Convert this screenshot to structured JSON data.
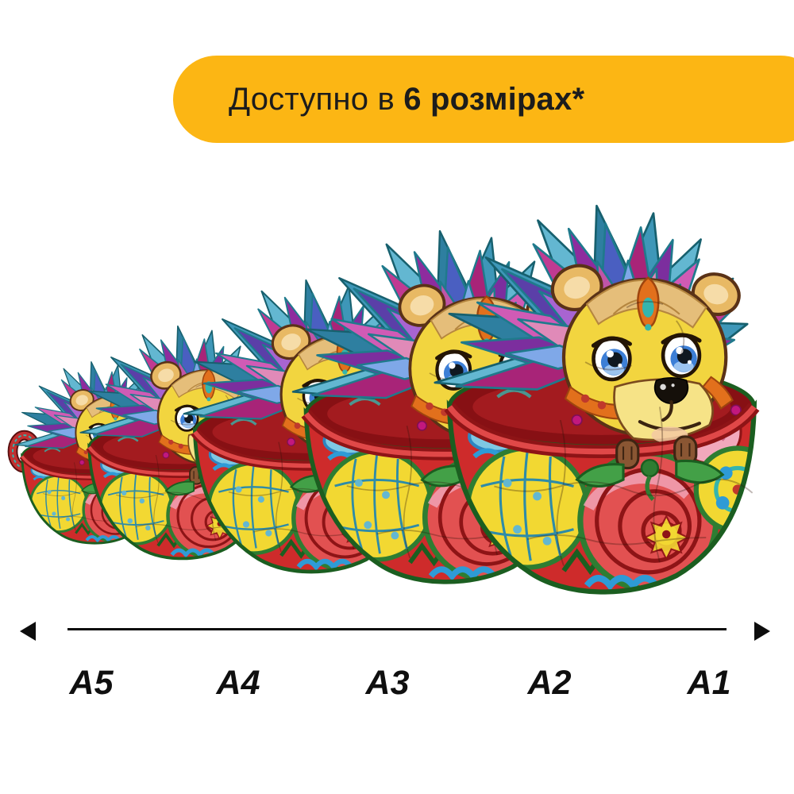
{
  "banner": {
    "text_regular": "Доступно в ",
    "text_bold": "6 розмірах*",
    "bg_color": "#FCB614",
    "text_color": "#1C1C1C"
  },
  "size_scale": {
    "labels": [
      "A5",
      "A4",
      "A3",
      "A2",
      "A1"
    ],
    "axis_color": "#0D0D0D"
  },
  "artwork": {
    "name": "hedgehog-in-teacup-puzzle",
    "cup_red": "#CE2B2B",
    "cup_interior": "#871014",
    "rim_green": "#1B5E20",
    "face_yellow": "#F2D53F",
    "quill_colors_back": [
      "#3E97B8",
      "#2E7FA0",
      "#63B7D1"
    ],
    "quill_colors_main": [
      "#8E2C9E",
      "#C03A92",
      "#5B3FA8",
      "#D05BB5",
      "#7C2E9E",
      "#A82478",
      "#4A5FC1"
    ],
    "quill_colors_front": [
      "#D07BC8",
      "#A864D1",
      "#E08AB8",
      "#7FA8E8",
      "#C055A8"
    ]
  }
}
